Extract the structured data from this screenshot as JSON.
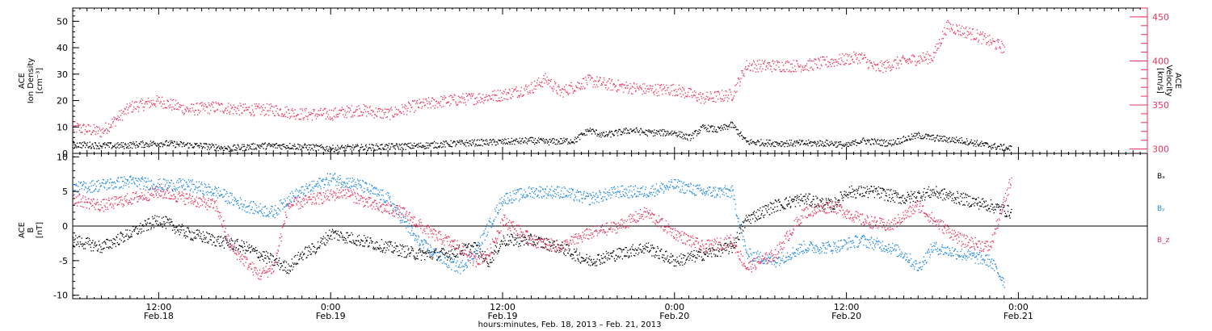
{
  "chart_data": [
    {
      "type": "scatter",
      "panel": "top",
      "ylabel": [
        "ACE",
        "Ion Density",
        "[cm⁻³]"
      ],
      "y2label": [
        "ACE",
        "Velocity",
        "[km/s]"
      ],
      "ylim": [
        0,
        55
      ],
      "y_ticks": [
        0,
        10,
        20,
        30,
        40,
        50
      ],
      "y2lim": [
        295,
        460
      ],
      "y2_ticks": [
        300,
        350,
        400,
        450
      ],
      "series": [
        {
          "axis": "left",
          "color": "#000000",
          "points": [
            [
              0,
              3.5
            ],
            [
              6,
              3
            ],
            [
              12,
              4
            ],
            [
              18,
              3
            ],
            [
              22,
              2
            ],
            [
              26,
              3
            ],
            [
              30,
              3
            ],
            [
              36,
              2
            ],
            [
              42,
              2.5
            ],
            [
              48,
              3
            ],
            [
              54,
              4
            ],
            [
              60,
              4.5
            ],
            [
              64,
              5
            ],
            [
              66,
              4.5
            ],
            [
              70,
              5
            ],
            [
              72,
              9
            ],
            [
              74,
              7
            ],
            [
              78,
              9
            ],
            [
              80,
              8
            ],
            [
              84,
              8
            ],
            [
              86,
              6
            ],
            [
              88,
              10
            ],
            [
              90,
              9
            ],
            [
              92,
              11
            ],
            [
              94,
              4.5
            ],
            [
              98,
              4
            ],
            [
              102,
              4
            ],
            [
              106,
              4
            ],
            [
              108,
              3
            ],
            [
              110,
              5
            ],
            [
              114,
              4
            ],
            [
              118,
              7
            ],
            [
              120,
              6
            ],
            [
              124,
              5
            ],
            [
              128,
              3
            ],
            [
              131,
              2
            ]
          ]
        },
        {
          "axis": "right",
          "color": "#e8335f",
          "points": [
            [
              0,
              325
            ],
            [
              4,
              320
            ],
            [
              8,
              348
            ],
            [
              12,
              355
            ],
            [
              16,
              345
            ],
            [
              20,
              348
            ],
            [
              24,
              345
            ],
            [
              28,
              345
            ],
            [
              32,
              340
            ],
            [
              36,
              340
            ],
            [
              40,
              345
            ],
            [
              44,
              340
            ],
            [
              48,
              350
            ],
            [
              52,
              355
            ],
            [
              56,
              358
            ],
            [
              60,
              362
            ],
            [
              64,
              370
            ],
            [
              66,
              380
            ],
            [
              68,
              365
            ],
            [
              72,
              378
            ],
            [
              76,
              372
            ],
            [
              80,
              368
            ],
            [
              84,
              368
            ],
            [
              88,
              358
            ],
            [
              92,
              362
            ],
            [
              94,
              395
            ],
            [
              98,
              395
            ],
            [
              102,
              395
            ],
            [
              106,
              400
            ],
            [
              110,
              405
            ],
            [
              112,
              392
            ],
            [
              116,
              400
            ],
            [
              118,
              403
            ],
            [
              120,
              405
            ],
            [
              122,
              440
            ],
            [
              126,
              430
            ],
            [
              130,
              415
            ]
          ]
        }
      ]
    },
    {
      "type": "scatter",
      "panel": "bottom",
      "ylabel": [
        "ACE",
        "B",
        "[nT]"
      ],
      "ylim": [
        -10.5,
        10.5
      ],
      "y_ticks": [
        -10,
        -5,
        0,
        5,
        10
      ],
      "reference_line": 0,
      "legend": [
        "Bₓ",
        "Bᵧ",
        "B_z"
      ],
      "legend_placement": "right",
      "series": [
        {
          "name": "Bₓ",
          "color": "#000000",
          "points": [
            [
              0,
              -2
            ],
            [
              4,
              -3
            ],
            [
              8,
              -1
            ],
            [
              12,
              1
            ],
            [
              16,
              -1
            ],
            [
              20,
              -2
            ],
            [
              24,
              -3
            ],
            [
              28,
              -5
            ],
            [
              30,
              -6
            ],
            [
              32,
              -4
            ],
            [
              34,
              -3
            ],
            [
              36,
              -1
            ],
            [
              40,
              -2
            ],
            [
              44,
              -3
            ],
            [
              48,
              -4
            ],
            [
              52,
              -4
            ],
            [
              56,
              -3
            ],
            [
              58,
              -5
            ],
            [
              60,
              -2
            ],
            [
              64,
              -2
            ],
            [
              68,
              -3
            ],
            [
              72,
              -5
            ],
            [
              76,
              -4
            ],
            [
              80,
              -3
            ],
            [
              84,
              -5
            ],
            [
              88,
              -4
            ],
            [
              92,
              -3
            ],
            [
              94,
              1
            ],
            [
              98,
              3
            ],
            [
              102,
              4
            ],
            [
              106,
              3
            ],
            [
              108,
              5
            ],
            [
              112,
              5
            ],
            [
              116,
              4
            ],
            [
              120,
              5
            ],
            [
              124,
              4
            ],
            [
              128,
              3
            ],
            [
              131,
              2
            ]
          ]
        },
        {
          "name": "Bᵧ",
          "color": "#1f88e0",
          "points": [
            [
              0,
              5.5
            ],
            [
              4,
              6
            ],
            [
              8,
              6.5
            ],
            [
              12,
              6
            ],
            [
              16,
              6
            ],
            [
              20,
              5
            ],
            [
              24,
              3
            ],
            [
              28,
              2
            ],
            [
              30,
              4
            ],
            [
              32,
              5
            ],
            [
              36,
              7
            ],
            [
              40,
              6
            ],
            [
              44,
              4
            ],
            [
              48,
              -2
            ],
            [
              52,
              -5
            ],
            [
              54,
              -6
            ],
            [
              56,
              -4
            ],
            [
              60,
              4
            ],
            [
              64,
              5
            ],
            [
              68,
              5
            ],
            [
              72,
              4
            ],
            [
              76,
              5
            ],
            [
              80,
              5
            ],
            [
              84,
              6
            ],
            [
              88,
              5
            ],
            [
              92,
              5
            ],
            [
              94,
              -4
            ],
            [
              98,
              -5
            ],
            [
              102,
              -3
            ],
            [
              106,
              -3
            ],
            [
              110,
              -2
            ],
            [
              114,
              -3
            ],
            [
              116,
              -4
            ],
            [
              118,
              -6
            ],
            [
              120,
              -3
            ],
            [
              124,
              -4
            ],
            [
              128,
              -5
            ],
            [
              130,
              -8
            ]
          ]
        },
        {
          "name": "B_z",
          "color": "#e8335f",
          "points": [
            [
              0,
              4
            ],
            [
              4,
              3
            ],
            [
              8,
              4
            ],
            [
              12,
              5
            ],
            [
              16,
              4
            ],
            [
              20,
              3
            ],
            [
              22,
              -3
            ],
            [
              24,
              -5
            ],
            [
              26,
              -7
            ],
            [
              28,
              -6
            ],
            [
              30,
              3
            ],
            [
              34,
              4
            ],
            [
              38,
              5
            ],
            [
              42,
              3
            ],
            [
              46,
              2
            ],
            [
              50,
              -1
            ],
            [
              54,
              -3
            ],
            [
              56,
              -5
            ],
            [
              58,
              -4
            ],
            [
              60,
              1
            ],
            [
              64,
              -2
            ],
            [
              68,
              -3
            ],
            [
              72,
              -1
            ],
            [
              76,
              0
            ],
            [
              80,
              2
            ],
            [
              84,
              -1
            ],
            [
              88,
              -3
            ],
            [
              92,
              -2
            ],
            [
              94,
              -6
            ],
            [
              98,
              -4
            ],
            [
              102,
              2
            ],
            [
              106,
              3
            ],
            [
              110,
              1
            ],
            [
              114,
              0
            ],
            [
              118,
              3
            ],
            [
              120,
              1
            ],
            [
              124,
              -2
            ],
            [
              128,
              -3
            ],
            [
              131,
              7
            ]
          ]
        }
      ]
    }
  ],
  "x_axis": {
    "range_hours": [
      0,
      150
    ],
    "tick_labels": [
      {
        "t": 12,
        "label": "12:00",
        "sub": "Feb.18"
      },
      {
        "t": 36,
        "label": "0:00",
        "sub": "Feb.19"
      },
      {
        "t": 60,
        "label": "12:00",
        "sub": "Feb.19"
      },
      {
        "t": 84,
        "label": "0:00",
        "sub": "Feb.20"
      },
      {
        "t": 108,
        "label": "12:00",
        "sub": "Feb.20"
      },
      {
        "t": 132,
        "label": "0:00",
        "sub": "Feb.21"
      }
    ],
    "xlabel": "hours:minutes, Feb. 18, 2013 – Feb. 21, 2013"
  },
  "colors": {
    "black": "#000000",
    "red": "#e8335f",
    "blue": "#1f88e0"
  }
}
